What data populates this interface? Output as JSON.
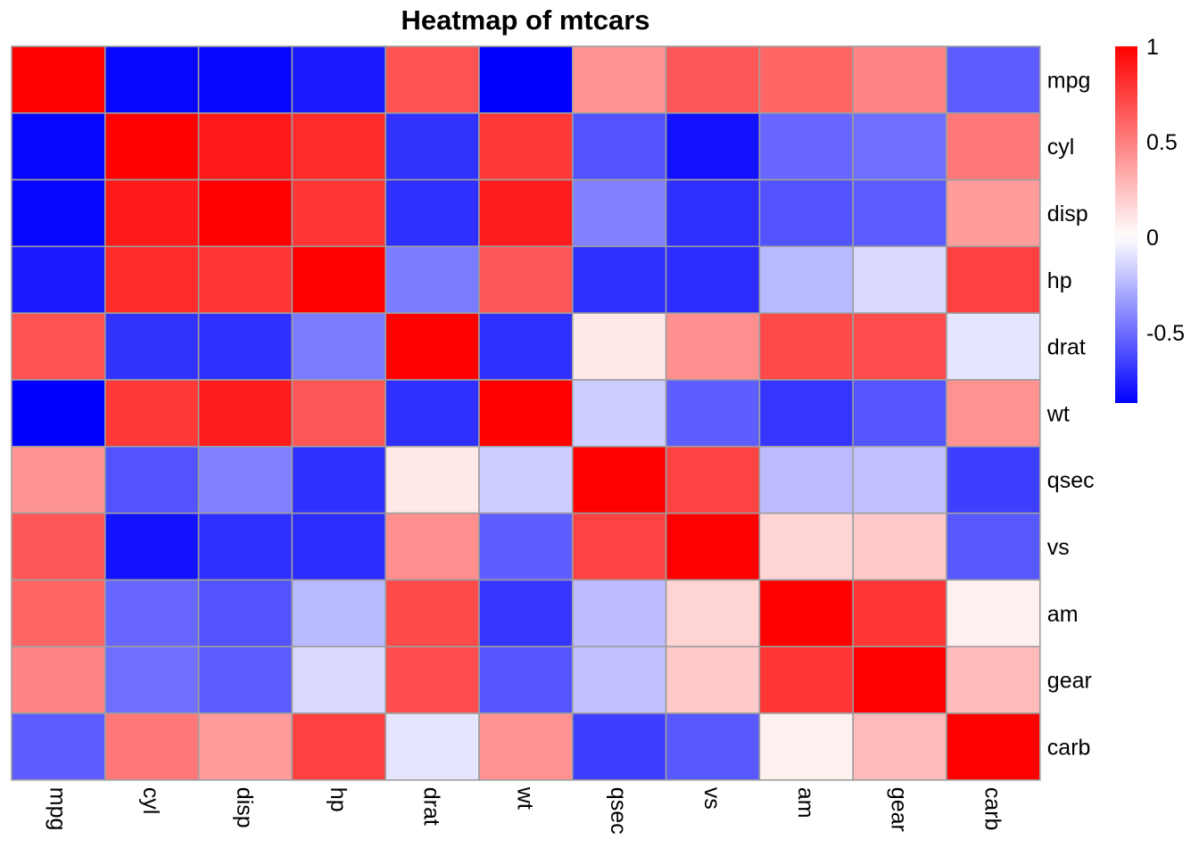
{
  "chart_data": {
    "type": "heatmap",
    "title": "Heatmap of mtcars",
    "rows": [
      "mpg",
      "cyl",
      "disp",
      "hp",
      "drat",
      "wt",
      "qsec",
      "vs",
      "am",
      "gear",
      "carb"
    ],
    "columns": [
      "mpg",
      "cyl",
      "disp",
      "hp",
      "drat",
      "wt",
      "qsec",
      "vs",
      "am",
      "gear",
      "carb"
    ],
    "values": [
      [
        1.0,
        -0.85,
        -0.85,
        -0.78,
        0.68,
        -0.87,
        0.42,
        0.66,
        0.6,
        0.48,
        -0.55
      ],
      [
        -0.85,
        1.0,
        0.9,
        0.83,
        -0.7,
        0.78,
        -0.59,
        -0.81,
        -0.52,
        -0.49,
        0.53
      ],
      [
        -0.85,
        0.9,
        1.0,
        0.79,
        -0.71,
        0.89,
        -0.43,
        -0.71,
        -0.59,
        -0.56,
        0.39
      ],
      [
        -0.78,
        0.83,
        0.79,
        1.0,
        -0.45,
        0.66,
        -0.71,
        -0.72,
        -0.24,
        -0.13,
        0.75
      ],
      [
        0.68,
        -0.7,
        -0.71,
        -0.45,
        1.0,
        -0.71,
        0.09,
        0.44,
        0.71,
        0.7,
        -0.09
      ],
      [
        -0.87,
        0.78,
        0.89,
        0.66,
        -0.71,
        1.0,
        -0.17,
        -0.55,
        -0.69,
        -0.58,
        0.43
      ],
      [
        0.42,
        -0.59,
        -0.43,
        -0.71,
        0.09,
        -0.17,
        1.0,
        0.74,
        -0.23,
        -0.21,
        -0.66
      ],
      [
        0.66,
        -0.81,
        -0.71,
        -0.72,
        0.44,
        -0.55,
        0.74,
        1.0,
        0.17,
        0.21,
        -0.57
      ],
      [
        0.6,
        -0.52,
        -0.59,
        -0.24,
        0.71,
        -0.69,
        -0.23,
        0.17,
        1.0,
        0.79,
        0.06
      ],
      [
        0.48,
        -0.49,
        -0.56,
        -0.13,
        0.7,
        -0.58,
        -0.21,
        0.21,
        0.79,
        1.0,
        0.27
      ],
      [
        -0.55,
        0.53,
        0.39,
        0.75,
        -0.09,
        0.43,
        -0.66,
        -0.57,
        0.06,
        0.27,
        1.0
      ]
    ],
    "colorscale": {
      "min": -0.87,
      "max": 1.0,
      "low_color": "#0000FF",
      "mid_color": "#FFFFFF",
      "high_color": "#FF0000",
      "ticks": [
        {
          "value": 1,
          "label": "1"
        },
        {
          "value": 0.5,
          "label": "0.5"
        },
        {
          "value": 0,
          "label": "0"
        },
        {
          "value": -0.5,
          "label": "-0.5"
        }
      ]
    },
    "legend_position": "top-right",
    "cell_border_color": "#9E9E9E"
  }
}
